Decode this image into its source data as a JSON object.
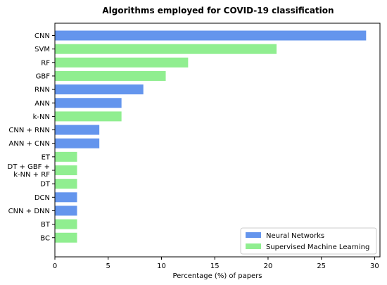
{
  "chart_data": {
    "type": "bar",
    "orientation": "horizontal",
    "title": "Algorithms employed for COVID-19 classification",
    "xlabel": "Percentage (%) of papers",
    "ylabel": "",
    "xlim": [
      0,
      30.5
    ],
    "xticks": [
      0,
      5,
      10,
      15,
      20,
      25,
      30
    ],
    "grid": false,
    "legend_position": "lower-right",
    "series": [
      {
        "name": "Neural Networks",
        "color": "#6495ED"
      },
      {
        "name": "Supervised Machine Learning",
        "color": "#90EE90"
      }
    ],
    "bars": [
      {
        "label": [
          "CNN"
        ],
        "value": 29.2,
        "series": 0
      },
      {
        "label": [
          "SVM"
        ],
        "value": 20.8,
        "series": 1
      },
      {
        "label": [
          "RF"
        ],
        "value": 12.5,
        "series": 1
      },
      {
        "label": [
          "GBF"
        ],
        "value": 10.4,
        "series": 1
      },
      {
        "label": [
          "RNN"
        ],
        "value": 8.3,
        "series": 0
      },
      {
        "label": [
          "ANN"
        ],
        "value": 6.25,
        "series": 0
      },
      {
        "label": [
          "k-NN"
        ],
        "value": 6.25,
        "series": 1
      },
      {
        "label": [
          "CNN + RNN"
        ],
        "value": 4.17,
        "series": 0
      },
      {
        "label": [
          "ANN + CNN"
        ],
        "value": 4.17,
        "series": 0
      },
      {
        "label": [
          "ET"
        ],
        "value": 2.08,
        "series": 1
      },
      {
        "label": [
          "DT + GBF +",
          "k-NN + RF"
        ],
        "value": 2.08,
        "series": 1
      },
      {
        "label": [
          "DT"
        ],
        "value": 2.08,
        "series": 1
      },
      {
        "label": [
          "DCN"
        ],
        "value": 2.08,
        "series": 0
      },
      {
        "label": [
          "CNN + DNN"
        ],
        "value": 2.08,
        "series": 0
      },
      {
        "label": [
          "BT"
        ],
        "value": 2.08,
        "series": 1
      },
      {
        "label": [
          "BC"
        ],
        "value": 2.08,
        "series": 1
      }
    ]
  }
}
